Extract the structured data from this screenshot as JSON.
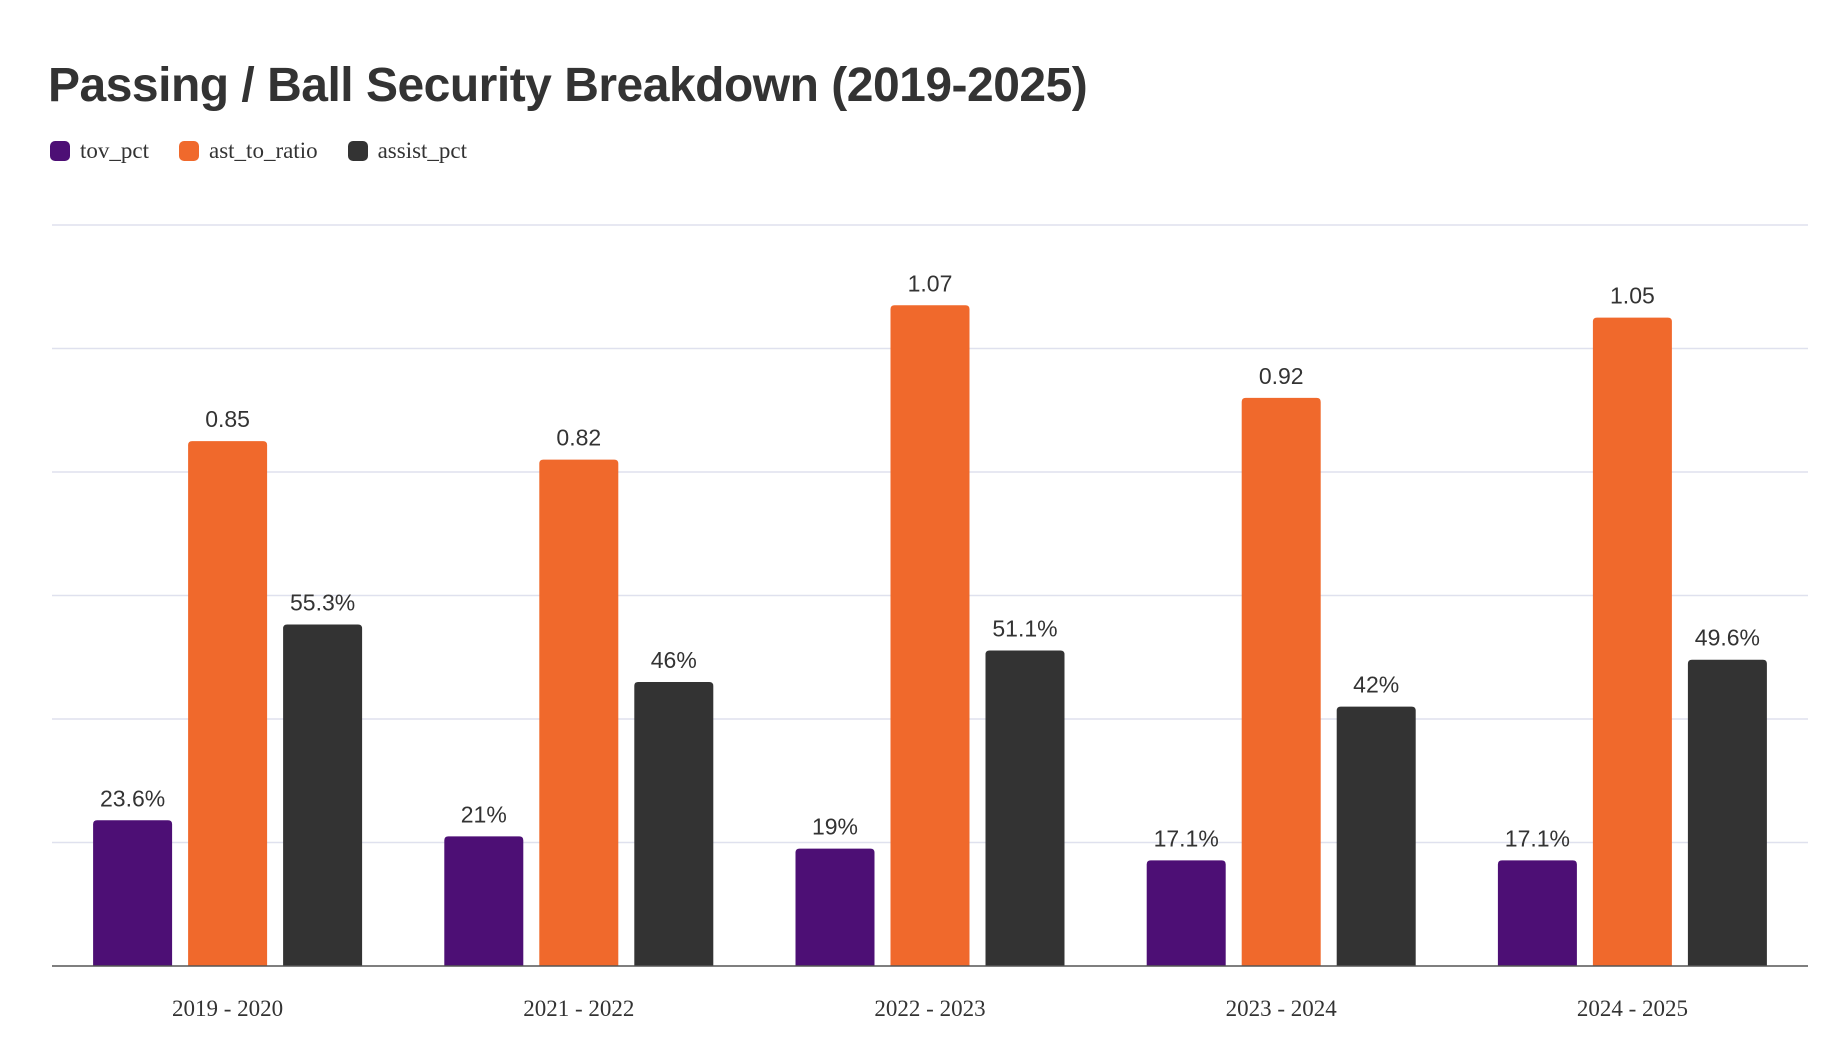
{
  "chart_data": {
    "type": "bar",
    "title": "Passing / Ball Security Breakdown (2019-2025)",
    "categories": [
      "2019 - 2020",
      "2021 - 2022",
      "2022 - 2023",
      "2023 - 2024",
      "2024 - 2025"
    ],
    "series": [
      {
        "name": "tov_pct",
        "color": "#4d0f75",
        "values": [
          0.236,
          0.21,
          0.19,
          0.171,
          0.171
        ],
        "labels": [
          "23.6%",
          "21%",
          "19%",
          "17.1%",
          "17.1%"
        ]
      },
      {
        "name": "ast_to_ratio",
        "color": "#f0692c",
        "values": [
          0.85,
          0.82,
          1.07,
          0.92,
          1.05
        ],
        "labels": [
          "0.85",
          "0.82",
          "1.07",
          "0.92",
          "1.05"
        ]
      },
      {
        "name": "assist_pct",
        "color": "#333333",
        "values": [
          0.553,
          0.46,
          0.511,
          0.42,
          0.496
        ],
        "labels": [
          "55.3%",
          "46%",
          "51.1%",
          "42%",
          "49.6%"
        ]
      }
    ],
    "ylim": [
      0,
      1.2
    ],
    "grid": true,
    "legend_position": "top-left",
    "xlabel": "",
    "ylabel": ""
  }
}
